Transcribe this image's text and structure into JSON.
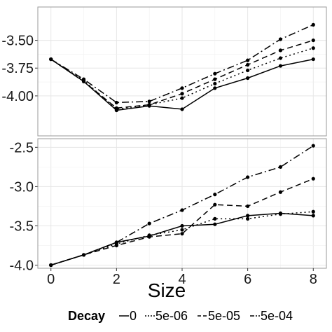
{
  "chart_data": {
    "type": "line",
    "xlabel": "Size",
    "x": [
      0,
      1,
      2,
      3,
      4,
      5,
      6,
      7,
      8
    ],
    "x_ticks": [
      "0",
      "2",
      "4",
      "6",
      "8"
    ],
    "xlim": [
      -0.4,
      8.4
    ],
    "grid": true,
    "legend": {
      "title": "Decay",
      "position": "bottom",
      "entries": [
        "0",
        "5e-06",
        "5e-05",
        "5e-04"
      ]
    },
    "panels": [
      {
        "ylim": [
          -4.36,
          -3.2
        ],
        "y_ticks": [
          "-3.50",
          "-3.75",
          "-4.00"
        ],
        "series": [
          {
            "name": "0",
            "style": "solid",
            "values": [
              -3.67,
              -3.87,
              -4.13,
              -4.09,
              -4.12,
              -3.93,
              -3.84,
              -3.73,
              -3.67
            ]
          },
          {
            "name": "5e-06",
            "style": "dotted",
            "values": [
              -3.67,
              -3.86,
              -4.12,
              -4.08,
              -4.02,
              -3.89,
              -3.77,
              -3.66,
              -3.57
            ]
          },
          {
            "name": "5e-05",
            "style": "dashed",
            "values": [
              -3.67,
              -3.87,
              -4.11,
              -4.08,
              -3.98,
              -3.85,
              -3.72,
              -3.59,
              -3.5
            ]
          },
          {
            "name": "5e-04",
            "style": "dash-dot",
            "values": [
              -3.67,
              -3.85,
              -4.06,
              -4.05,
              -3.93,
              -3.8,
              -3.68,
              -3.49,
              -3.36
            ]
          }
        ]
      },
      {
        "ylim": [
          -4.04,
          -2.39
        ],
        "y_ticks": [
          "-2.5",
          "-3.0",
          "-3.5",
          "-4.0"
        ],
        "series": [
          {
            "name": "0",
            "style": "solid",
            "values": [
              -4.0,
              -3.87,
              -3.71,
              -3.63,
              -3.5,
              -3.48,
              -3.37,
              -3.34,
              -3.37
            ]
          },
          {
            "name": "5e-06",
            "style": "dotted",
            "values": [
              -4.0,
              -3.87,
              -3.73,
              -3.62,
              -3.55,
              -3.41,
              -3.41,
              -3.35,
              -3.32
            ]
          },
          {
            "name": "5e-05",
            "style": "dashed",
            "values": [
              -4.0,
              -3.87,
              -3.75,
              -3.64,
              -3.6,
              -3.23,
              -3.25,
              -3.07,
              -2.9
            ]
          },
          {
            "name": "5e-04",
            "style": "dash-dot",
            "values": [
              -4.0,
              -3.87,
              -3.71,
              -3.47,
              -3.3,
              -3.1,
              -2.88,
              -2.75,
              -2.48
            ]
          }
        ]
      }
    ]
  }
}
